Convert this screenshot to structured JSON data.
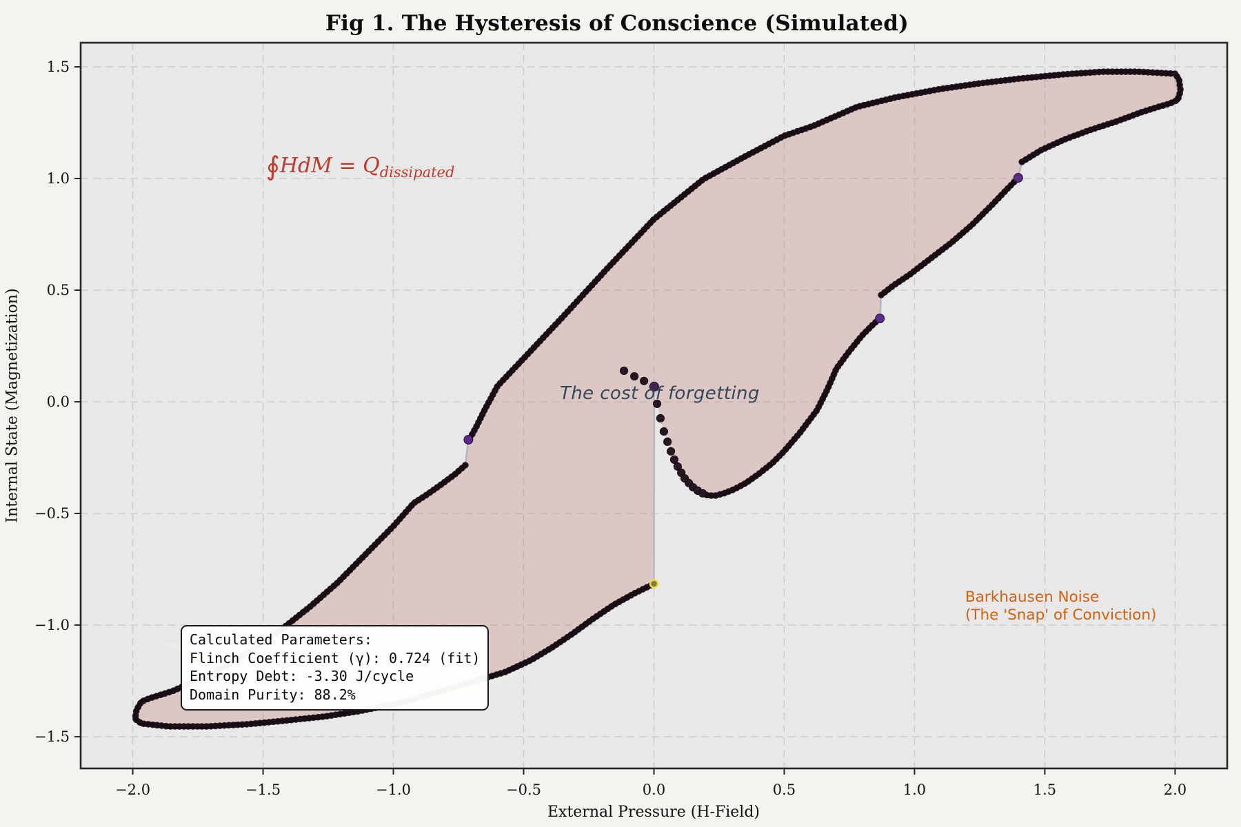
{
  "title": "Fig 1. The Hysteresis of Conscience (Simulated)",
  "annotations": {
    "formula": {
      "integral_symbol": "∮",
      "body": "HdM = Q",
      "subscript": "dissipated",
      "color": "#c03a2b"
    },
    "cost_of_forgetting": {
      "text": "The cost of forgetting",
      "color": "#33475a"
    },
    "barkhausen": {
      "line1": "Barkhausen Noise",
      "line2": "(The 'Snap' of Conviction)",
      "color": "#d2600e"
    }
  },
  "params_box": {
    "lines": [
      "Calculated Parameters:",
      "Flinch Coefficient (γ): 0.724 (fit)",
      "Entropy Debt: -3.30 J/cycle",
      "Domain Purity: 88.2%"
    ]
  },
  "chart_data": {
    "type": "scatter",
    "title": "Fig 1. The Hysteresis of Conscience (Simulated)",
    "xlabel": "External Pressure (H-Field)",
    "ylabel": "Internal State (Magnetization)",
    "xlim": [
      -2.2,
      2.2
    ],
    "ylim": [
      -1.642,
      1.608
    ],
    "grid": "dashed",
    "x_ticks": [
      {
        "v": -2.0,
        "label": "−2.0"
      },
      {
        "v": -1.5,
        "label": "−1.5"
      },
      {
        "v": -1.0,
        "label": "−1.0"
      },
      {
        "v": -0.5,
        "label": "−0.5"
      },
      {
        "v": 0.0,
        "label": "0.0"
      },
      {
        "v": 0.5,
        "label": "0.5"
      },
      {
        "v": 1.0,
        "label": "1.0"
      },
      {
        "v": 1.5,
        "label": "1.5"
      },
      {
        "v": 2.0,
        "label": "2.0"
      }
    ],
    "y_ticks": [
      {
        "v": 1.5,
        "label": "1.5"
      },
      {
        "v": 1.0,
        "label": "1.0"
      },
      {
        "v": 0.5,
        "label": "0.5"
      },
      {
        "v": 0.0,
        "label": "0.0"
      },
      {
        "v": -0.5,
        "label": "−0.5"
      },
      {
        "v": -1.0,
        "label": "−1.0"
      },
      {
        "v": -1.5,
        "label": "−1.5"
      }
    ],
    "colors": {
      "figure_bg": "#f4f3f0",
      "axes_bg": "#e9e8e8",
      "grid": "#cdcdcd",
      "spine": "#262626",
      "loop_fill": "rgba(190,110,100,0.27)",
      "rope_core": "#271823",
      "rope_bead": "#180d14",
      "jump_line": "#b9b3c4",
      "ghost_line": "#edebe7",
      "avalanche_dot": "#5a2d8c",
      "jump_top_dot": "#3b2750",
      "yellow_marker_edge": "#ecdf4e"
    },
    "series": {
      "descending_branch": [
        [
          2.0,
          1.469
        ],
        [
          1.86,
          1.478
        ],
        [
          1.72,
          1.478
        ],
        [
          1.57,
          1.466
        ],
        [
          1.4,
          1.447
        ],
        [
          1.25,
          1.426
        ],
        [
          1.1,
          1.401
        ],
        [
          0.93,
          1.364
        ],
        [
          0.78,
          1.321
        ],
        [
          0.61,
          1.235
        ],
        [
          0.5,
          1.191
        ],
        [
          0.35,
          1.099
        ],
        [
          0.19,
          0.997
        ],
        [
          0.0,
          0.818
        ],
        [
          -0.18,
          0.596
        ],
        [
          -0.35,
          0.38
        ],
        [
          -0.5,
          0.194
        ],
        [
          -0.6,
          0.071
        ],
        [
          -0.65,
          -0.037
        ],
        [
          -0.68,
          -0.108
        ],
        [
          -0.7,
          -0.151
        ],
        [
          -0.712,
          -0.17
        ]
      ],
      "descending_branch_post_avalanche": [
        [
          -0.724,
          -0.284
        ],
        [
          -0.763,
          -0.324
        ],
        [
          -0.816,
          -0.37
        ],
        [
          -0.869,
          -0.414
        ],
        [
          -0.922,
          -0.454
        ],
        [
          -0.999,
          -0.556
        ],
        [
          -1.108,
          -0.685
        ],
        [
          -1.213,
          -0.809
        ],
        [
          -1.319,
          -0.917
        ],
        [
          -1.425,
          -1.015
        ],
        [
          -1.531,
          -1.102
        ],
        [
          -1.637,
          -1.179
        ],
        [
          -1.742,
          -1.241
        ],
        [
          -1.848,
          -1.296
        ],
        [
          -1.933,
          -1.327
        ],
        [
          -1.967,
          -1.343
        ],
        [
          -1.986,
          -1.38
        ],
        [
          -1.991,
          -1.42
        ]
      ],
      "ascending_branch": [
        [
          -1.991,
          -1.42
        ],
        [
          -1.967,
          -1.441
        ],
        [
          -1.861,
          -1.454
        ],
        [
          -1.716,
          -1.454
        ],
        [
          -1.557,
          -1.444
        ],
        [
          -1.398,
          -1.426
        ],
        [
          -1.266,
          -1.41
        ],
        [
          -1.134,
          -1.386
        ],
        [
          -0.975,
          -1.349
        ],
        [
          -0.79,
          -1.287
        ],
        [
          -0.658,
          -1.241
        ],
        [
          -0.57,
          -1.21
        ],
        [
          -0.472,
          -1.157
        ],
        [
          -0.393,
          -1.102
        ],
        [
          -0.314,
          -1.04
        ],
        [
          -0.234,
          -0.972
        ],
        [
          -0.155,
          -0.91
        ],
        [
          -0.075,
          -0.858
        ],
        [
          0.0,
          -0.815
        ]
      ],
      "recoil_sparse_dots": [
        [
          -0.115,
          0.139
        ],
        [
          -0.075,
          0.114
        ],
        [
          -0.038,
          0.093
        ],
        [
          0.001,
          0.068
        ],
        [
          0.012,
          -0.009
        ],
        [
          0.025,
          -0.074
        ],
        [
          0.038,
          -0.133
        ],
        [
          0.052,
          -0.179
        ],
        [
          0.065,
          -0.222
        ],
        [
          0.078,
          -0.259
        ],
        [
          0.091,
          -0.29
        ],
        [
          0.105,
          -0.318
        ],
        [
          0.118,
          -0.343
        ],
        [
          0.134,
          -0.364
        ],
        [
          0.15,
          -0.383
        ],
        [
          0.168,
          -0.398
        ],
        [
          0.187,
          -0.41
        ]
      ],
      "recoil_rise": [
        [
          0.187,
          -0.41
        ],
        [
          0.208,
          -0.42
        ],
        [
          0.237,
          -0.42
        ],
        [
          0.269,
          -0.41
        ],
        [
          0.308,
          -0.392
        ],
        [
          0.353,
          -0.364
        ],
        [
          0.401,
          -0.324
        ],
        [
          0.454,
          -0.275
        ],
        [
          0.499,
          -0.222
        ],
        [
          0.56,
          -0.139
        ],
        [
          0.626,
          -0.037
        ],
        [
          0.666,
          0.056
        ],
        [
          0.7,
          0.148
        ],
        [
          0.745,
          0.219
        ],
        [
          0.798,
          0.296
        ],
        [
          0.838,
          0.343
        ],
        [
          0.867,
          0.373
        ]
      ],
      "ascending_post_snap_1": [
        [
          0.872,
          0.478
        ],
        [
          0.917,
          0.519
        ],
        [
          0.983,
          0.571
        ],
        [
          1.062,
          0.642
        ],
        [
          1.142,
          0.713
        ],
        [
          1.221,
          0.793
        ],
        [
          1.301,
          0.886
        ],
        [
          1.354,
          0.951
        ],
        [
          1.398,
          1.003
        ]
      ],
      "ascending_post_snap_2": [
        [
          1.412,
          1.074
        ],
        [
          1.486,
          1.127
        ],
        [
          1.578,
          1.176
        ],
        [
          1.671,
          1.216
        ],
        [
          1.777,
          1.256
        ],
        [
          1.869,
          1.296
        ],
        [
          1.936,
          1.321
        ],
        [
          1.981,
          1.336
        ],
        [
          2.01,
          1.352
        ],
        [
          2.021,
          1.392
        ],
        [
          2.015,
          1.444
        ],
        [
          2.0,
          1.469
        ]
      ],
      "ghost_connector": [
        [
          -1.86,
          -1.086
        ],
        [
          -1.66,
          -1.169
        ],
        [
          -1.45,
          -1.24
        ],
        [
          -1.19,
          -1.296
        ],
        [
          -0.92,
          -1.318
        ],
        [
          -0.76,
          -1.309
        ],
        [
          -0.66,
          -1.275
        ],
        [
          -0.57,
          -1.238
        ],
        [
          -0.53,
          -1.219
        ]
      ],
      "avalanche_jumps": {
        "main_jump": [
          [
            0.0,
            -0.815
          ],
          [
            0.001,
            0.068
          ]
        ],
        "jump_desc": [
          [
            -0.712,
            -0.17
          ],
          [
            -0.724,
            -0.284
          ]
        ],
        "jump_a": [
          [
            0.867,
            0.373
          ],
          [
            0.872,
            0.478
          ]
        ],
        "jump_b": [
          [
            1.398,
            1.003
          ],
          [
            1.412,
            1.074
          ]
        ]
      },
      "avalanche_markers": [
        [
          -0.712,
          -0.17
        ],
        [
          0.867,
          0.373
        ],
        [
          1.398,
          1.003
        ]
      ],
      "jump_top_marker": [
        0.001,
        0.068
      ],
      "yellow_marker": [
        0.0,
        -0.815
      ]
    }
  }
}
